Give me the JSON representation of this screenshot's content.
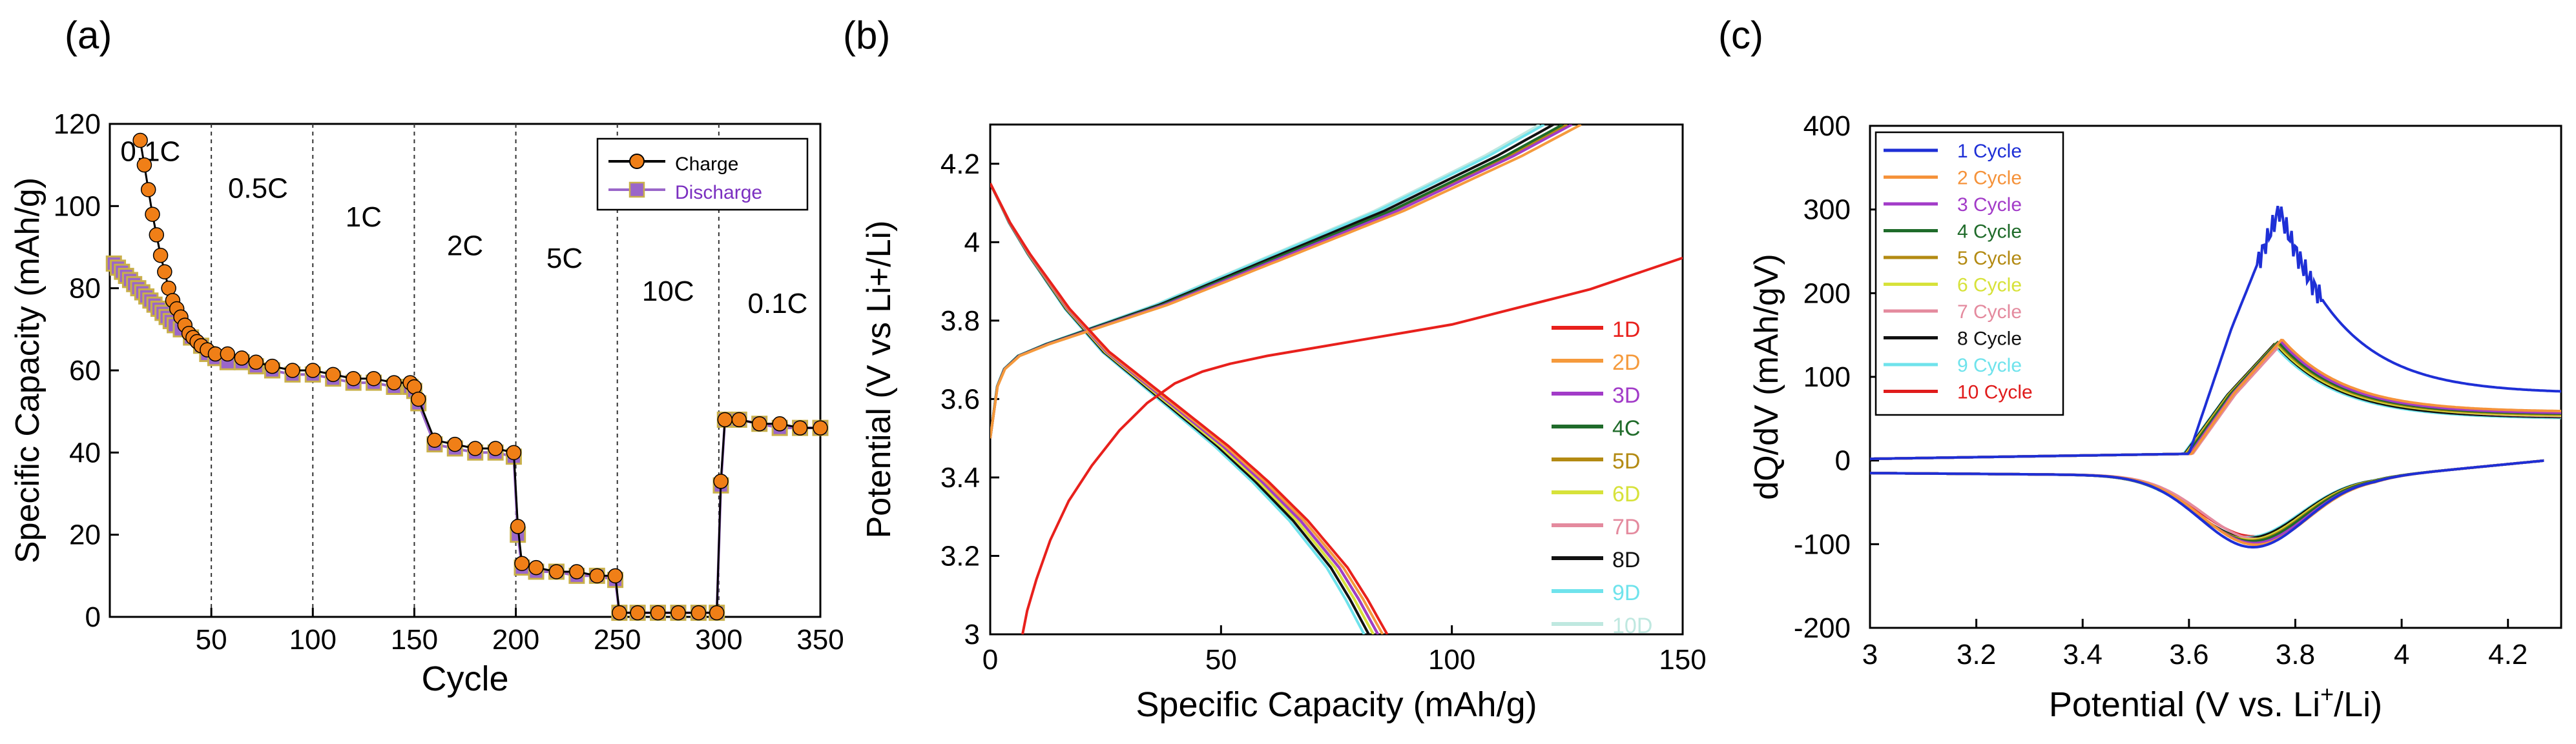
{
  "chart_data": [
    {
      "panel_label": "(a)",
      "type": "scatter",
      "title": "",
      "xlabel": "Cycle",
      "ylabel": "Specific Capacity (mAh/g)",
      "xlim": [
        0,
        350
      ],
      "ylim": [
        0,
        120
      ],
      "xticks": [
        50,
        100,
        150,
        200,
        250,
        300,
        350
      ],
      "yticks": [
        0,
        20,
        40,
        60,
        80,
        100,
        120
      ],
      "separators": [
        50,
        100,
        150,
        200,
        250,
        300
      ],
      "rate_labels": [
        {
          "text": "0.1C",
          "x": 20,
          "y": 111
        },
        {
          "text": "0.5C",
          "x": 73,
          "y": 102
        },
        {
          "text": "1C",
          "x": 125,
          "y": 95
        },
        {
          "text": "2C",
          "x": 175,
          "y": 88
        },
        {
          "text": "5C",
          "x": 224,
          "y": 85
        },
        {
          "text": "10C",
          "x": 275,
          "y": 77
        },
        {
          "text": "0.1C",
          "x": 329,
          "y": 74
        }
      ],
      "legend": {
        "placement": "top-right",
        "entries": [
          "Charge",
          "Discharge"
        ]
      },
      "series": [
        {
          "name": "Charge",
          "color": "#F07F17",
          "stroke": "#000000",
          "x": [
            15,
            17,
            19,
            21,
            23,
            25,
            27,
            29,
            31,
            33,
            35,
            37,
            39,
            41,
            43,
            45,
            48,
            52,
            58,
            65,
            72,
            80,
            90,
            100,
            110,
            120,
            130,
            140,
            148,
            150,
            152,
            160,
            170,
            180,
            190,
            199,
            201,
            203,
            210,
            220,
            230,
            240,
            249,
            251,
            260,
            270,
            280,
            290,
            299,
            301,
            303,
            310,
            320,
            330,
            340,
            350
          ],
          "values": [
            116,
            110,
            104,
            98,
            93,
            88,
            84,
            80,
            77,
            75,
            73,
            71,
            69,
            68,
            67,
            66,
            65,
            64,
            64,
            63,
            62,
            61,
            60,
            60,
            59,
            58,
            58,
            57,
            57,
            56,
            53,
            43,
            42,
            41,
            41,
            40,
            22,
            13,
            12,
            11,
            11,
            10,
            10,
            1,
            1,
            1,
            1,
            1,
            1,
            33,
            48,
            48,
            47,
            47,
            46,
            46
          ]
        },
        {
          "name": "Discharge",
          "color": "#9A66C9",
          "stroke": "#C9B04A",
          "x": [
            2,
            4,
            6,
            8,
            10,
            12,
            14,
            16,
            18,
            20,
            22,
            24,
            26,
            28,
            30,
            32,
            35,
            40,
            45,
            48,
            52,
            58,
            65,
            72,
            80,
            90,
            100,
            110,
            120,
            130,
            140,
            148,
            150,
            152,
            160,
            170,
            180,
            190,
            199,
            201,
            203,
            210,
            220,
            230,
            240,
            249,
            251,
            260,
            270,
            280,
            290,
            299,
            301,
            303,
            310,
            320,
            330,
            340,
            350
          ],
          "values": [
            86,
            85,
            84,
            83,
            82,
            81,
            80,
            79,
            78,
            77,
            76,
            75,
            74,
            73,
            72,
            71,
            70,
            68,
            66,
            64,
            63,
            62,
            62,
            61,
            60,
            59,
            59,
            58,
            57,
            57,
            56,
            56,
            55,
            52,
            42,
            41,
            40,
            40,
            39,
            20,
            12,
            11,
            11,
            10,
            10,
            9,
            1,
            1,
            1,
            1,
            1,
            1,
            32,
            48,
            48,
            47,
            46,
            46,
            46
          ]
        }
      ]
    },
    {
      "panel_label": "(b)",
      "type": "line",
      "title": "",
      "xlabel": "Specific Capacity (mAh/g)",
      "ylabel": "Potential (V vs Li+/Li)",
      "xlim": [
        0,
        150
      ],
      "ylim": [
        3,
        4.3
      ],
      "xticks": [
        0,
        50,
        100,
        150
      ],
      "yticks": [
        3,
        3.2,
        3.4,
        3.6,
        3.8,
        4,
        4.2
      ],
      "ytick_labels": [
        "3",
        "3.2",
        "3.4",
        "3.6",
        "3.8",
        "4",
        "4.2"
      ],
      "legend": {
        "placement": "bottom-right",
        "entries": [
          "1D",
          "2D",
          "3D",
          "4C",
          "5D",
          "6D",
          "7D",
          "8D",
          "9D",
          "10D"
        ]
      },
      "series": [
        {
          "name": "1D",
          "color": "#E8201C",
          "charge_end": 150,
          "discharge_end": 86
        },
        {
          "name": "2D",
          "color": "#F59A3C",
          "charge_end": 128,
          "discharge_end": 85
        },
        {
          "name": "3D",
          "color": "#A23BC8",
          "charge_end": 126,
          "discharge_end": 84
        },
        {
          "name": "4C",
          "color": "#1F6B2A",
          "charge_end": 124,
          "discharge_end": 84
        },
        {
          "name": "5D",
          "color": "#B38A12",
          "charge_end": 125,
          "discharge_end": 84
        },
        {
          "name": "6D",
          "color": "#D7E23A",
          "charge_end": 125,
          "discharge_end": 83
        },
        {
          "name": "7D",
          "color": "#E48A9E",
          "charge_end": 125,
          "discharge_end": 83
        },
        {
          "name": "8D",
          "color": "#111111",
          "charge_end": 122,
          "discharge_end": 82
        },
        {
          "name": "9D",
          "color": "#6FE3EC",
          "charge_end": 120,
          "discharge_end": 81
        },
        {
          "name": "10D",
          "color": "#BFE8E0",
          "charge_end": 119,
          "discharge_end": 81
        }
      ],
      "first_cycle_charge": {
        "x": [
          7,
          8,
          10,
          13,
          17,
          22,
          28,
          34,
          40,
          46,
          52,
          60,
          70,
          80,
          90,
          100,
          110,
          120,
          130,
          140,
          150
        ],
        "y": [
          3.0,
          3.06,
          3.14,
          3.24,
          3.34,
          3.43,
          3.52,
          3.59,
          3.64,
          3.67,
          3.69,
          3.71,
          3.73,
          3.75,
          3.77,
          3.79,
          3.82,
          3.85,
          3.88,
          3.92,
          3.96
        ]
      },
      "charge_shape": {
        "x": [
          0,
          0.01,
          0.02,
          0.05,
          0.1,
          0.2,
          0.3,
          0.4,
          0.5,
          0.6,
          0.7,
          0.8,
          0.9,
          1.0
        ],
        "y": [
          3.5,
          3.62,
          3.67,
          3.71,
          3.74,
          3.79,
          3.84,
          3.9,
          3.96,
          4.02,
          4.08,
          4.15,
          4.22,
          4.3
        ]
      },
      "discharge_shape": {
        "x": [
          0,
          0.05,
          0.1,
          0.2,
          0.3,
          0.4,
          0.5,
          0.6,
          0.7,
          0.8,
          0.9,
          0.95,
          1.0
        ],
        "y": [
          4.15,
          4.05,
          3.97,
          3.83,
          3.72,
          3.64,
          3.56,
          3.48,
          3.39,
          3.29,
          3.17,
          3.09,
          3.0
        ]
      }
    },
    {
      "panel_label": "(c)",
      "type": "line",
      "title": "",
      "xlabel_main": "Potential (V vs. Li",
      "xlabel_sup": "+",
      "xlabel_tail": "/Li)",
      "ylabel": "dQ/dV (mAh/gV)",
      "xlim": [
        3,
        4.3
      ],
      "ylim": [
        -200,
        400
      ],
      "xticks": [
        3,
        3.2,
        3.4,
        3.6,
        3.8,
        4,
        4.2
      ],
      "xtick_labels": [
        "3",
        "3.2",
        "3.4",
        "3.6",
        "3.8",
        "4",
        "4.2"
      ],
      "yticks": [
        -200,
        -100,
        0,
        100,
        200,
        300,
        400
      ],
      "legend": {
        "placement": "top-left",
        "entries": [
          "1 Cycle",
          "2 Cycle",
          "3 Cycle",
          "4 Cycle",
          "5 Cycle",
          "6 Cycle",
          "7 Cycle",
          "8 Cycle",
          "9 Cycle",
          "10 Cycle"
        ]
      },
      "series": [
        {
          "name": "1 Cycle",
          "color": "#1E2FD6",
          "charge_peak": 300,
          "tail": 80,
          "discharge_min": -100,
          "offset": 0.0
        },
        {
          "name": "2 Cycle",
          "color": "#F5923A",
          "charge_peak": 145,
          "tail": 58,
          "discharge_min": -97,
          "offset": 0.005
        },
        {
          "name": "3 Cycle",
          "color": "#A23BC8",
          "charge_peak": 143,
          "tail": 56,
          "discharge_min": -95,
          "offset": 0.002
        },
        {
          "name": "4 Cycle",
          "color": "#1F6B2A",
          "charge_peak": 142,
          "tail": 55,
          "discharge_min": -93,
          "offset": -0.002
        },
        {
          "name": "5 Cycle",
          "color": "#B38A12",
          "charge_peak": 141,
          "tail": 54,
          "discharge_min": -92,
          "offset": -0.004
        },
        {
          "name": "6 Cycle",
          "color": "#D7E23A",
          "charge_peak": 140,
          "tail": 53,
          "discharge_min": -91,
          "offset": -0.006
        },
        {
          "name": "7 Cycle",
          "color": "#E48A9E",
          "charge_peak": 142,
          "tail": 52,
          "discharge_min": -90,
          "offset": 0.007
        },
        {
          "name": "8 Cycle",
          "color": "#111111",
          "charge_peak": 140,
          "tail": 51,
          "discharge_min": -89,
          "offset": -0.008
        },
        {
          "name": "9 Cycle",
          "color": "#6FE3EC",
          "charge_peak": 138,
          "tail": 50,
          "discharge_min": -88,
          "offset": -0.01
        },
        {
          "name": "10 Cycle",
          "color": "#E01B1B",
          "charge_peak": 139,
          "tail": 50,
          "discharge_min": -87,
          "offset": 0.0
        }
      ]
    }
  ]
}
